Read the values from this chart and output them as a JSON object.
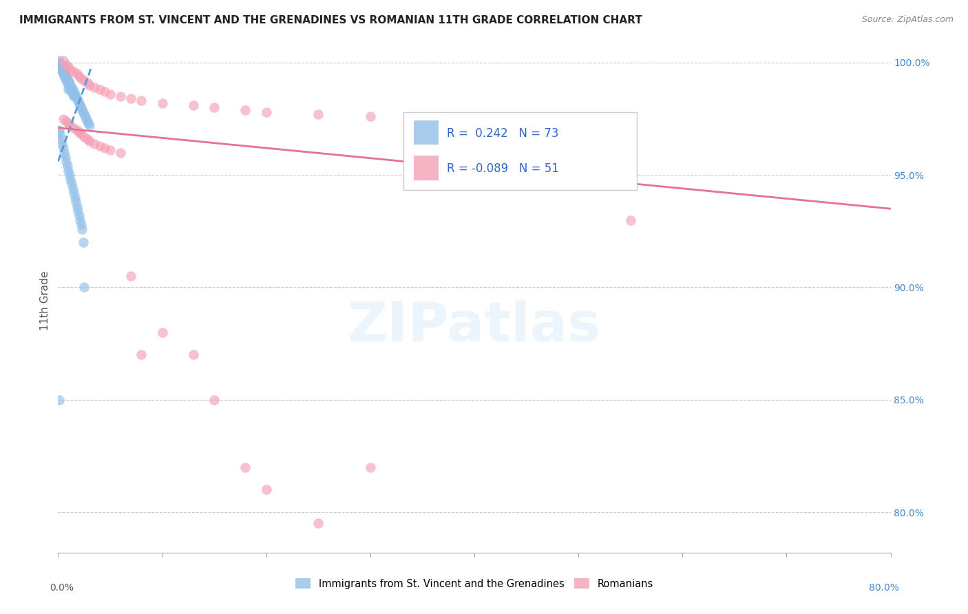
{
  "title": "IMMIGRANTS FROM ST. VINCENT AND THE GRENADINES VS ROMANIAN 11TH GRADE CORRELATION CHART",
  "source": "Source: ZipAtlas.com",
  "ylabel": "11th Grade",
  "watermark": "ZIPatlas",
  "blue_R": 0.242,
  "blue_N": 73,
  "pink_R": -0.089,
  "pink_N": 51,
  "blue_color": "#92C0E8",
  "pink_color": "#F4A0B5",
  "blue_line_color": "#5599DD",
  "pink_line_color": "#E87090",
  "xlim": [
    0.0,
    0.8
  ],
  "ylim": [
    0.782,
    1.006
  ],
  "yticks": [
    0.8,
    0.85,
    0.9,
    0.95,
    1.0
  ],
  "ytick_labels": [
    "80.0%",
    "85.0%",
    "90.0%",
    "95.0%",
    "100.0%"
  ],
  "xticks": [
    0.0,
    0.1,
    0.2,
    0.3,
    0.4,
    0.5,
    0.6,
    0.7,
    0.8
  ],
  "blue_x": [
    0.001,
    0.002,
    0.002,
    0.003,
    0.003,
    0.004,
    0.004,
    0.005,
    0.005,
    0.005,
    0.006,
    0.006,
    0.007,
    0.007,
    0.007,
    0.008,
    0.008,
    0.009,
    0.009,
    0.01,
    0.01,
    0.01,
    0.011,
    0.011,
    0.012,
    0.012,
    0.013,
    0.013,
    0.014,
    0.014,
    0.015,
    0.015,
    0.016,
    0.017,
    0.018,
    0.019,
    0.02,
    0.021,
    0.022,
    0.023,
    0.024,
    0.025,
    0.026,
    0.027,
    0.028,
    0.029,
    0.03,
    0.001,
    0.002,
    0.003,
    0.004,
    0.005,
    0.006,
    0.007,
    0.008,
    0.009,
    0.01,
    0.011,
    0.012,
    0.013,
    0.014,
    0.015,
    0.016,
    0.017,
    0.018,
    0.019,
    0.02,
    0.021,
    0.022,
    0.023,
    0.024,
    0.025,
    0.001
  ],
  "blue_y": [
    1.001,
    1.0,
    0.999,
    0.998,
    0.997,
    0.999,
    0.996,
    0.998,
    0.997,
    0.995,
    0.996,
    0.994,
    0.997,
    0.995,
    0.993,
    0.994,
    0.992,
    0.993,
    0.991,
    0.992,
    0.99,
    0.988,
    0.991,
    0.989,
    0.99,
    0.988,
    0.989,
    0.987,
    0.988,
    0.986,
    0.987,
    0.985,
    0.986,
    0.985,
    0.984,
    0.983,
    0.982,
    0.981,
    0.98,
    0.979,
    0.978,
    0.977,
    0.976,
    0.975,
    0.974,
    0.973,
    0.972,
    0.97,
    0.968,
    0.966,
    0.964,
    0.962,
    0.96,
    0.958,
    0.956,
    0.954,
    0.952,
    0.95,
    0.948,
    0.946,
    0.944,
    0.942,
    0.94,
    0.938,
    0.936,
    0.934,
    0.932,
    0.93,
    0.928,
    0.926,
    0.92,
    0.9,
    0.85
  ],
  "pink_x": [
    0.005,
    0.008,
    0.01,
    0.012,
    0.015,
    0.018,
    0.02,
    0.022,
    0.025,
    0.028,
    0.03,
    0.035,
    0.04,
    0.045,
    0.05,
    0.06,
    0.07,
    0.08,
    0.1,
    0.13,
    0.15,
    0.18,
    0.2,
    0.25,
    0.3,
    0.55,
    0.005,
    0.008,
    0.01,
    0.012,
    0.015,
    0.018,
    0.02,
    0.022,
    0.025,
    0.028,
    0.03,
    0.035,
    0.04,
    0.045,
    0.05,
    0.06,
    0.07,
    0.08,
    0.1,
    0.13,
    0.15,
    0.18,
    0.2,
    0.25,
    0.3
  ],
  "pink_y": [
    1.001,
    0.999,
    0.998,
    0.997,
    0.996,
    0.995,
    0.994,
    0.993,
    0.992,
    0.991,
    0.99,
    0.989,
    0.988,
    0.987,
    0.986,
    0.985,
    0.984,
    0.983,
    0.982,
    0.981,
    0.98,
    0.979,
    0.978,
    0.977,
    0.976,
    0.93,
    0.975,
    0.974,
    0.973,
    0.972,
    0.971,
    0.97,
    0.969,
    0.968,
    0.967,
    0.966,
    0.965,
    0.964,
    0.963,
    0.962,
    0.961,
    0.96,
    0.905,
    0.87,
    0.88,
    0.87,
    0.85,
    0.82,
    0.81,
    0.795,
    0.82
  ],
  "blue_trend_x": [
    0.0,
    0.032
  ],
  "blue_trend_y": [
    0.956,
    0.998
  ],
  "pink_trend_x": [
    0.0,
    0.8
  ],
  "pink_trend_y": [
    0.971,
    0.935
  ],
  "legend_blue_text": "R =  0.242   N = 73",
  "legend_pink_text": "R = -0.089   N = 51",
  "legend_R_blue": "0.242",
  "legend_N_blue": "73",
  "legend_R_pink": "-0.089",
  "legend_N_pink": "51"
}
